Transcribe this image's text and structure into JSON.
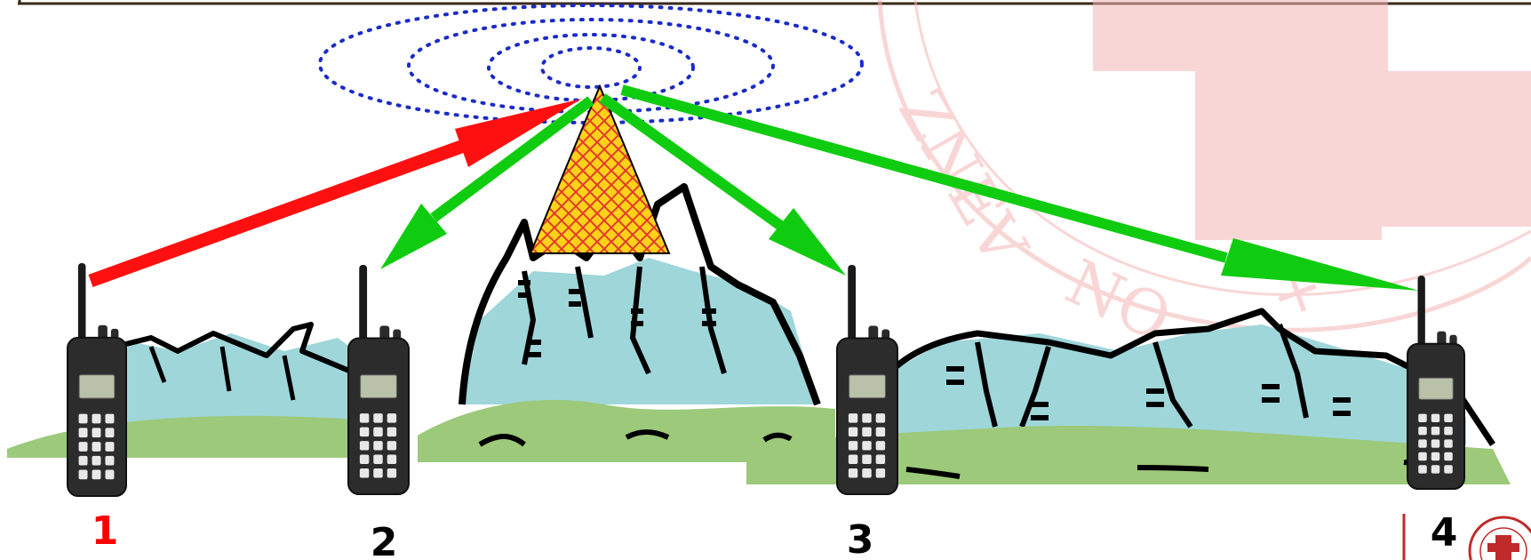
{
  "radios": [
    {
      "label": "1",
      "color": "#ff0000",
      "link": "uplink"
    },
    {
      "label": "2",
      "color": "#000000",
      "link": "downlink"
    },
    {
      "label": "3",
      "color": "#000000",
      "link": "downlink"
    },
    {
      "label": "4",
      "color": "#000000",
      "link": "downlink"
    }
  ],
  "repeater": {
    "icon": "repeater-tower-icon"
  },
  "colors": {
    "uplink": "#ff1010",
    "downlink": "#10cc10",
    "waves": "#1a2bc8",
    "water": "#9ed6da",
    "grass": "#9cc97a",
    "tower_fill": "#ffd21a",
    "tower_hatch": "#e23a2a",
    "watermark": "#f5b5b5"
  }
}
